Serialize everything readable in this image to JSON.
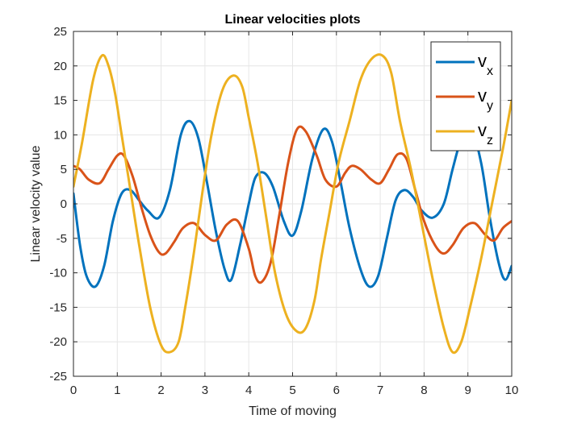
{
  "chart_data": {
    "type": "line",
    "title": "Linear velocities plots",
    "xlabel": "Time of moving",
    "ylabel": "Linear velocity value",
    "xlim": [
      0,
      10
    ],
    "ylim": [
      -25,
      25
    ],
    "xticks": [
      0,
      1,
      2,
      3,
      4,
      5,
      6,
      7,
      8,
      9,
      10
    ],
    "yticks": [
      -25,
      -20,
      -15,
      -10,
      -5,
      0,
      5,
      10,
      15,
      20,
      25
    ],
    "grid": true,
    "legend_position": "top-right",
    "series": [
      {
        "name_main": "v",
        "name_sub": "x",
        "color": "#0072BD",
        "x": [
          0,
          0.15,
          0.3,
          0.5,
          0.7,
          0.9,
          1.1,
          1.3,
          1.5,
          1.7,
          1.95,
          2.2,
          2.45,
          2.65,
          2.85,
          3.05,
          3.25,
          3.45,
          3.6,
          3.8,
          4.0,
          4.15,
          4.35,
          4.55,
          4.8,
          5.0,
          5.2,
          5.45,
          5.7,
          5.9,
          6.1,
          6.3,
          6.55,
          6.75,
          6.95,
          7.15,
          7.35,
          7.55,
          7.75,
          7.95,
          8.2,
          8.45,
          8.65,
          8.85,
          9.05,
          9.3,
          9.5,
          9.7,
          9.85,
          10
        ],
        "y": [
          1.5,
          -6.0,
          -10.5,
          -12.0,
          -9.0,
          -2.5,
          1.5,
          2.0,
          0.5,
          -1.0,
          -2.0,
          2.0,
          10.0,
          12.0,
          9.5,
          3.0,
          -4.0,
          -9.5,
          -11.0,
          -6.0,
          0.0,
          3.8,
          4.5,
          2.5,
          -2.5,
          -4.6,
          -1.0,
          6.5,
          10.8,
          9.0,
          3.0,
          -3.5,
          -9.5,
          -12.0,
          -10.5,
          -5.0,
          0.5,
          2.0,
          1.0,
          -1.0,
          -2.0,
          0.0,
          5.0,
          9.5,
          11.5,
          6.0,
          -2.0,
          -8.5,
          -11.0,
          -9.0
        ]
      },
      {
        "name_main": "v",
        "name_sub": "y",
        "color": "#D95319",
        "x": [
          0,
          0.15,
          0.35,
          0.6,
          0.8,
          1.0,
          1.15,
          1.35,
          1.55,
          1.75,
          1.95,
          2.1,
          2.3,
          2.5,
          2.75,
          3.0,
          3.25,
          3.5,
          3.75,
          4.0,
          4.15,
          4.3,
          4.5,
          4.7,
          4.9,
          5.1,
          5.3,
          5.55,
          5.75,
          6.0,
          6.2,
          6.35,
          6.55,
          6.8,
          7.0,
          7.2,
          7.4,
          7.6,
          7.8,
          8.0,
          8.25,
          8.45,
          8.65,
          8.9,
          9.15,
          9.4,
          9.6,
          9.8,
          10
        ],
        "y": [
          5.5,
          5.0,
          3.5,
          3.0,
          5.0,
          7.0,
          7.0,
          4.0,
          -0.5,
          -4.5,
          -7.0,
          -7.2,
          -5.5,
          -3.5,
          -2.8,
          -4.5,
          -5.3,
          -3.0,
          -2.5,
          -6.5,
          -10.5,
          -11.3,
          -8.5,
          -1.5,
          6.0,
          10.8,
          10.5,
          7.0,
          3.5,
          2.5,
          4.5,
          5.5,
          5.0,
          3.5,
          3.0,
          5.0,
          7.2,
          6.5,
          2.0,
          -2.5,
          -6.0,
          -7.2,
          -6.0,
          -3.5,
          -2.8,
          -4.5,
          -5.3,
          -3.5,
          -2.5
        ]
      },
      {
        "name_main": "v",
        "name_sub": "z",
        "color": "#EDB120",
        "x": [
          0,
          0.2,
          0.45,
          0.65,
          0.8,
          0.95,
          1.1,
          1.3,
          1.5,
          1.75,
          2.0,
          2.2,
          2.4,
          2.55,
          2.75,
          2.95,
          3.15,
          3.4,
          3.65,
          3.85,
          4.0,
          4.2,
          4.4,
          4.6,
          4.85,
          5.1,
          5.3,
          5.5,
          5.65,
          5.85,
          6.05,
          6.3,
          6.55,
          6.8,
          7.05,
          7.25,
          7.45,
          7.7,
          7.95,
          8.2,
          8.45,
          8.65,
          8.85,
          9.05,
          9.3,
          9.55,
          9.8,
          10
        ],
        "y": [
          2.5,
          9.0,
          18.0,
          21.5,
          20.0,
          16.0,
          10.0,
          2.0,
          -6.0,
          -15.0,
          -20.5,
          -21.5,
          -20.0,
          -15.0,
          -7.0,
          2.0,
          10.0,
          16.5,
          18.6,
          17.0,
          12.5,
          6.0,
          -2.0,
          -10.0,
          -16.0,
          -18.5,
          -18.0,
          -14.0,
          -8.0,
          -1.0,
          6.0,
          12.0,
          18.0,
          21.0,
          21.5,
          19.0,
          12.0,
          5.0,
          -3.0,
          -11.0,
          -18.0,
          -21.5,
          -20.0,
          -15.0,
          -8.0,
          0.0,
          8.0,
          15.0
        ]
      }
    ]
  }
}
